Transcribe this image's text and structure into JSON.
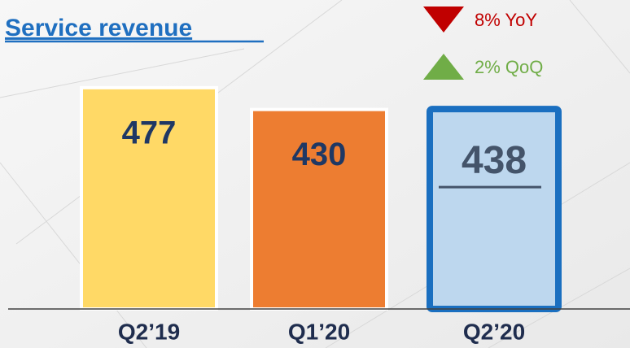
{
  "chart_data": {
    "type": "bar",
    "title": "Service revenue",
    "categories": [
      "Q2’19",
      "Q1’20",
      "Q2’20"
    ],
    "values": [
      477,
      430,
      438
    ],
    "colors": [
      "#ffd966",
      "#ed7d31",
      "#bdd7ee"
    ],
    "highlight_index": 2,
    "highlight_color": "#1a6fc0",
    "ylim": [
      0,
      666
    ],
    "annotations": [
      {
        "text": "8% YoY",
        "direction": "down",
        "color": "#c00000"
      },
      {
        "text": "2% QoQ",
        "direction": "up",
        "color": "#70ad47"
      }
    ]
  }
}
